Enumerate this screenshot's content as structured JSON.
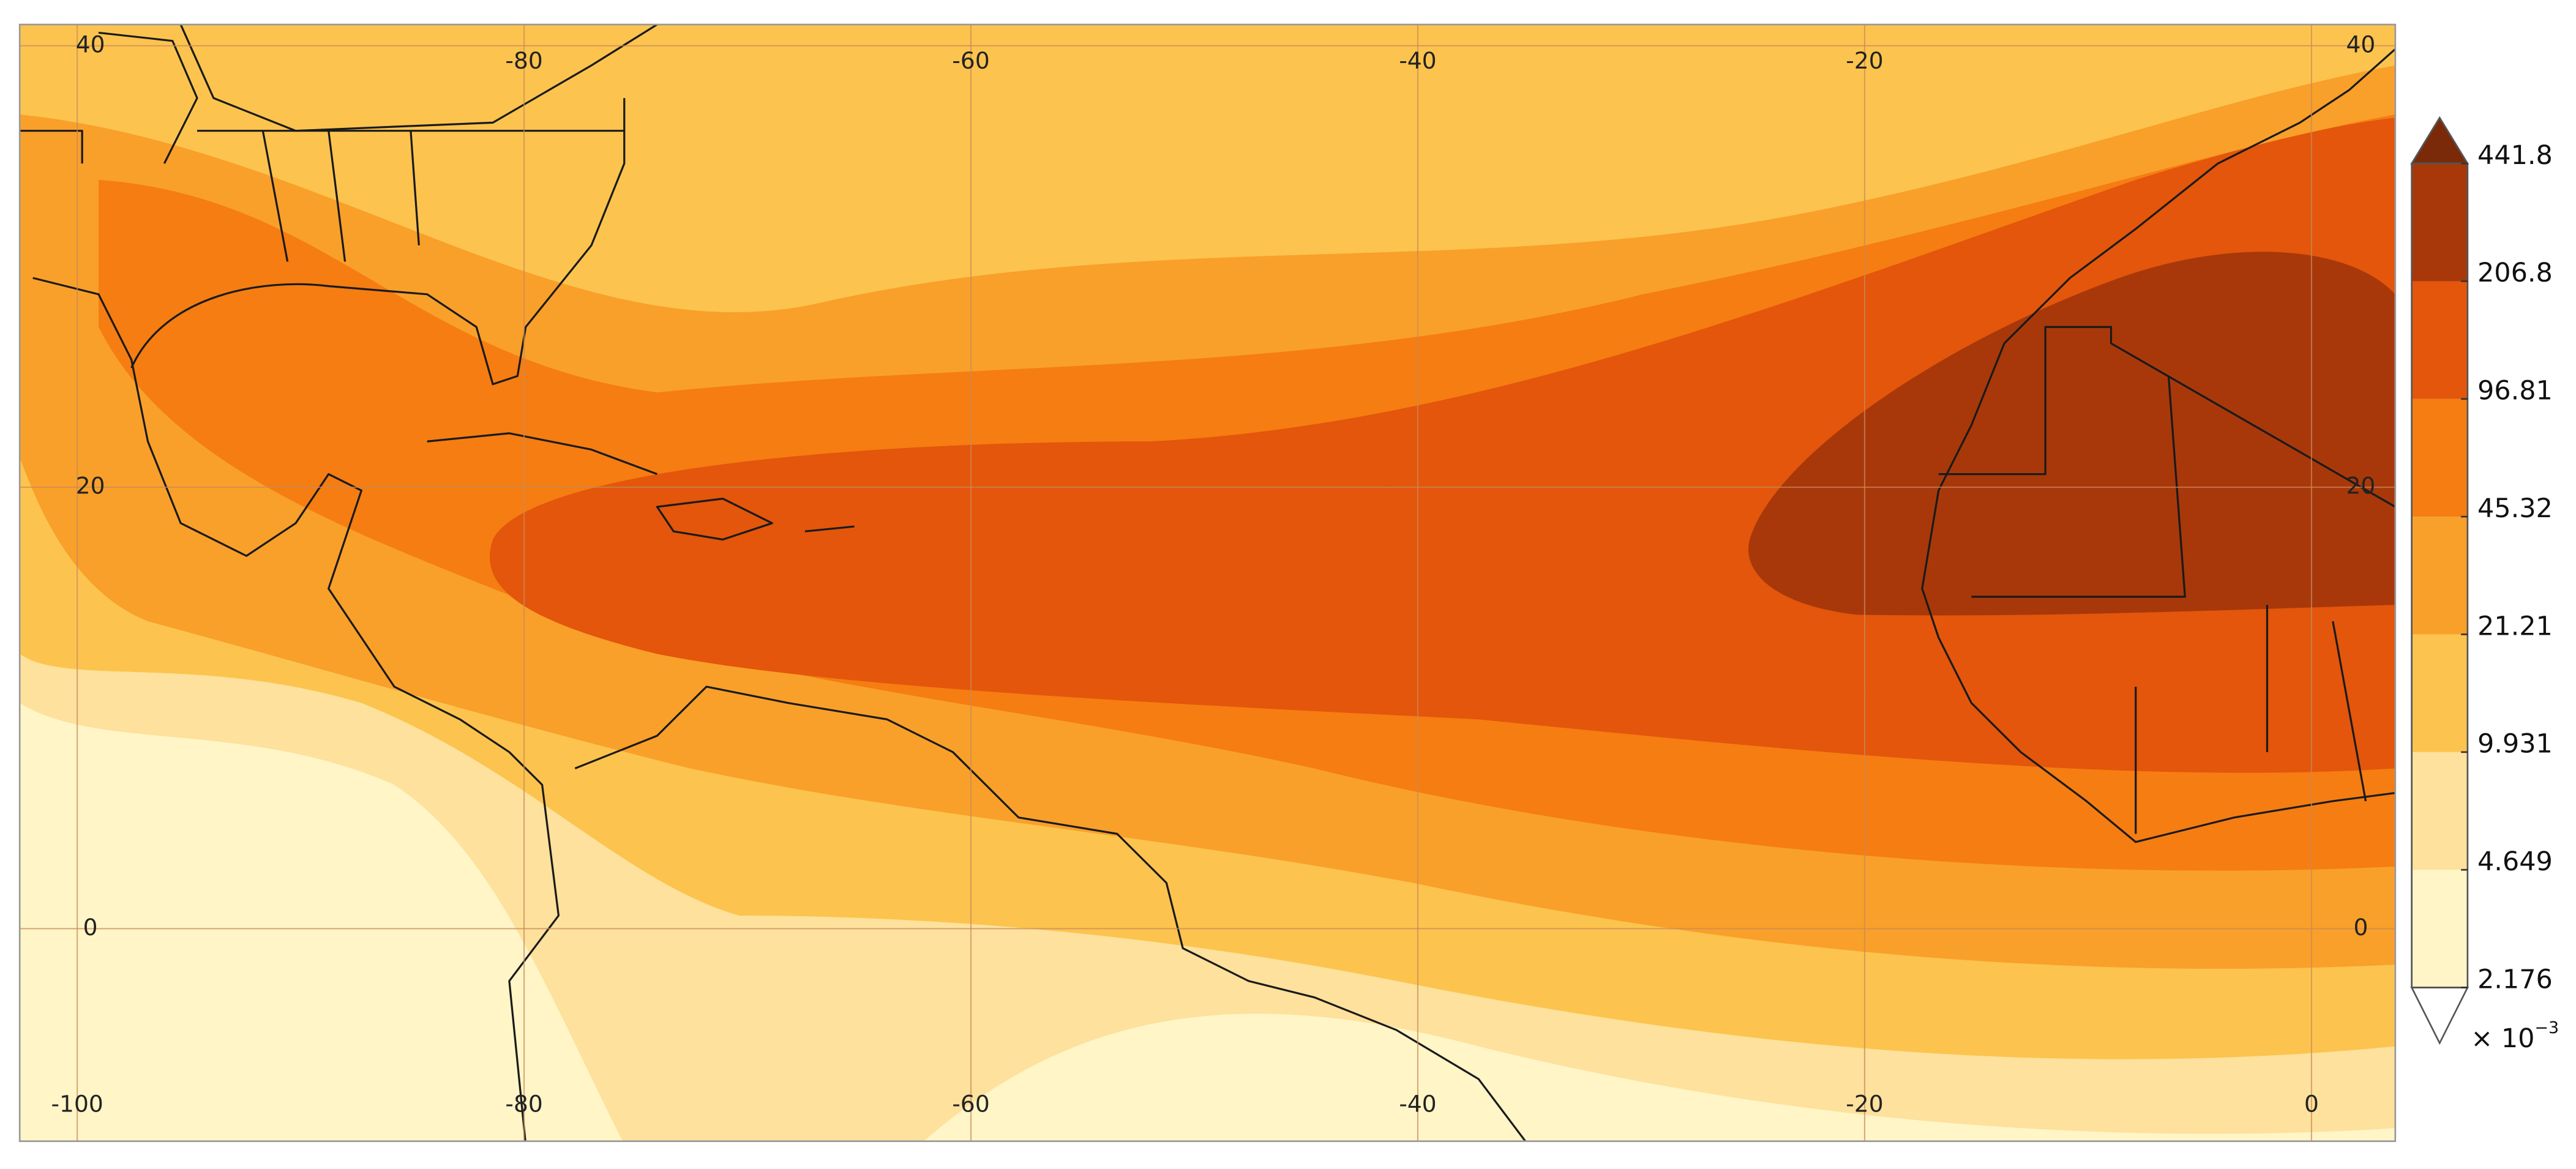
{
  "map": {
    "lon_ticks_bottom": [
      -100,
      -80,
      -60,
      -40,
      -20,
      0
    ],
    "lon_ticks_top": [
      -80,
      -60,
      -40,
      -20
    ],
    "lat_ticks_left": [
      40,
      20,
      0
    ],
    "lat_ticks_right": [
      40,
      20,
      0
    ],
    "colorbar": {
      "levels": [
        2.176,
        4.649,
        9.931,
        21.21,
        45.32,
        96.81,
        206.8,
        441.8
      ],
      "band_colors": [
        "#fff5c6",
        "#fde19c",
        "#fcc44e",
        "#f9a02a",
        "#f57d12",
        "#e3560b",
        "#a8380a"
      ],
      "under_color": "#ffffff",
      "over_color": "#7a2a08",
      "multiplier": {
        "base": "× 10",
        "exponent": "−3"
      }
    }
  }
}
